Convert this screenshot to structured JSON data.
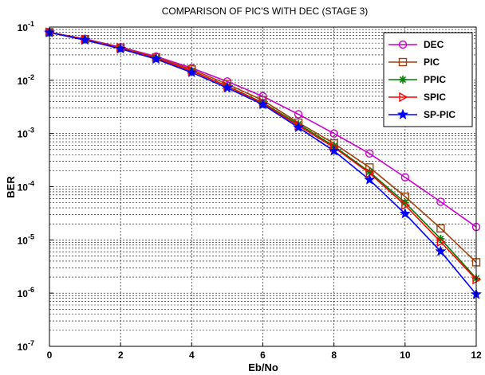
{
  "chart_data": {
    "type": "line",
    "title": "COMPARISON OF PIC'S WITH DEC (STAGE 3)",
    "xlabel": "Eb/No",
    "ylabel": "BER",
    "xlim": [
      0,
      12
    ],
    "ylim": [
      1e-07,
      0.1
    ],
    "yscale": "log",
    "grid": true,
    "legend_position": "top-right",
    "x_ticks": [
      "0",
      "2",
      "4",
      "6",
      "8",
      "10",
      "12"
    ],
    "y_ticks": [
      {
        "base": "10",
        "exp": "-7"
      },
      {
        "base": "10",
        "exp": "-6"
      },
      {
        "base": "10",
        "exp": "-5"
      },
      {
        "base": "10",
        "exp": "-4"
      },
      {
        "base": "10",
        "exp": "-3"
      },
      {
        "base": "10",
        "exp": "-2"
      },
      {
        "base": "10",
        "exp": "-1"
      }
    ],
    "x": [
      0,
      1,
      2,
      3,
      4,
      5,
      6,
      7,
      8,
      9,
      10,
      11,
      12
    ],
    "series": [
      {
        "name": "DEC",
        "color": "#cc00cc",
        "marker": "circle",
        "values": [
          0.08,
          0.06,
          0.042,
          0.028,
          0.017,
          0.0095,
          0.005,
          0.0023,
          0.001,
          0.00042,
          0.00015,
          5.2e-05,
          1.75e-05
        ]
      },
      {
        "name": "PIC",
        "color": "#a0400a",
        "marker": "square",
        "values": [
          0.08,
          0.059,
          0.041,
          0.027,
          0.016,
          0.0085,
          0.0042,
          0.0016,
          0.00065,
          0.00023,
          6.5e-05,
          1.65e-05,
          3.8e-06
        ]
      },
      {
        "name": "PPIC",
        "color": "#008000",
        "marker": "star",
        "values": [
          0.08,
          0.058,
          0.04,
          0.026,
          0.015,
          0.0078,
          0.0038,
          0.0015,
          0.00058,
          0.00019,
          5e-05,
          1.05e-05,
          1.9e-06
        ]
      },
      {
        "name": "SPIC",
        "color": "#ff0000",
        "marker": "triangle-right",
        "values": [
          0.08,
          0.058,
          0.04,
          0.026,
          0.015,
          0.0077,
          0.0037,
          0.0014,
          0.00055,
          0.00018,
          4.5e-05,
          9.2e-06,
          1.8e-06
        ]
      },
      {
        "name": "SP-PIC",
        "color": "#0000ff",
        "marker": "hexagram",
        "values": [
          0.079,
          0.057,
          0.039,
          0.025,
          0.014,
          0.0072,
          0.0035,
          0.0013,
          0.00047,
          0.000135,
          3.1e-05,
          6.1e-06,
          9.5e-07
        ]
      }
    ]
  }
}
